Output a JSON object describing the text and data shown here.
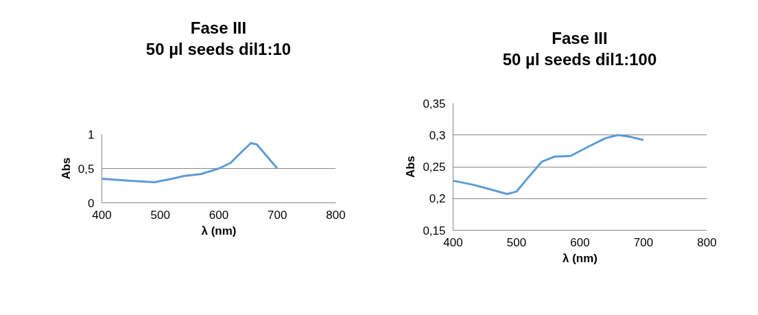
{
  "chart_data": [
    {
      "type": "line",
      "title": "Fase III\n50 µl seeds dil1:10",
      "xlabel": "λ (nm)",
      "ylabel": "Abs",
      "x": [
        400,
        450,
        490,
        520,
        540,
        570,
        600,
        620,
        640,
        655,
        665,
        680,
        700
      ],
      "series": [
        {
          "color": "#5b9bd5",
          "values": [
            0.35,
            0.32,
            0.3,
            0.35,
            0.39,
            0.42,
            0.5,
            0.58,
            0.75,
            0.87,
            0.85,
            0.7,
            0.5
          ]
        }
      ],
      "xlim": [
        400,
        800
      ],
      "xticks": [
        400,
        500,
        600,
        700,
        800
      ],
      "ylim": [
        0,
        1
      ],
      "yticks": [
        0,
        {
          "value": 0.5,
          "label": "0,5"
        },
        1
      ],
      "grid": "y",
      "marker": "none",
      "line_style": "solid"
    },
    {
      "type": "line",
      "title": "Fase III\n50 µl seeds dil1:100",
      "xlabel": "λ (nm)",
      "ylabel": "Abs",
      "x": [
        400,
        430,
        460,
        485,
        500,
        520,
        540,
        560,
        585,
        610,
        640,
        660,
        680,
        700
      ],
      "series": [
        {
          "color": "#5b9bd5",
          "values": [
            0.228,
            0.222,
            0.214,
            0.207,
            0.211,
            0.235,
            0.258,
            0.266,
            0.267,
            0.28,
            0.295,
            0.3,
            0.297,
            0.292
          ]
        }
      ],
      "xlim": [
        400,
        800
      ],
      "xticks": [
        400,
        500,
        600,
        700,
        800
      ],
      "ylim": [
        0.15,
        0.35
      ],
      "yticks": [
        {
          "value": 0.15,
          "label": "0,15"
        },
        {
          "value": 0.2,
          "label": "0,2"
        },
        {
          "value": 0.25,
          "label": "0,25"
        },
        {
          "value": 0.3,
          "label": "0,3"
        },
        {
          "value": 0.35,
          "label": "0,35"
        }
      ],
      "grid": "y",
      "marker": "none",
      "line_style": "solid"
    }
  ]
}
